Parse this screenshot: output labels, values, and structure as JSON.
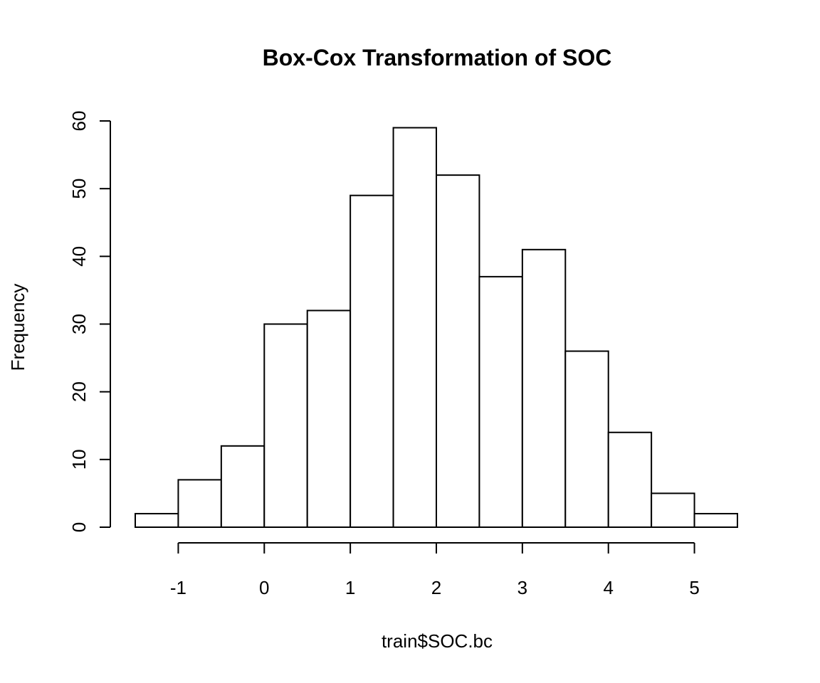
{
  "chart_data": {
    "type": "bar",
    "title": "Box-Cox Transformation of SOC",
    "xlabel": "train$SOC.bc",
    "ylabel": "Frequency",
    "bins": [
      {
        "x0": -1.5,
        "x1": -1.0,
        "count": 2
      },
      {
        "x0": -1.0,
        "x1": -0.5,
        "count": 7
      },
      {
        "x0": -0.5,
        "x1": 0.0,
        "count": 12
      },
      {
        "x0": 0.0,
        "x1": 0.5,
        "count": 30
      },
      {
        "x0": 0.5,
        "x1": 1.0,
        "count": 32
      },
      {
        "x0": 1.0,
        "x1": 1.5,
        "count": 49
      },
      {
        "x0": 1.5,
        "x1": 2.0,
        "count": 59
      },
      {
        "x0": 2.0,
        "x1": 2.5,
        "count": 52
      },
      {
        "x0": 2.5,
        "x1": 3.0,
        "count": 37
      },
      {
        "x0": 3.0,
        "x1": 3.5,
        "count": 41
      },
      {
        "x0": 3.5,
        "x1": 4.0,
        "count": 26
      },
      {
        "x0": 4.0,
        "x1": 4.5,
        "count": 14
      },
      {
        "x0": 4.5,
        "x1": 5.0,
        "count": 5
      },
      {
        "x0": 5.0,
        "x1": 5.5,
        "count": 2
      }
    ],
    "x_ticks": [
      {
        "value": -1,
        "label": "-1"
      },
      {
        "value": 0,
        "label": "0"
      },
      {
        "value": 1,
        "label": "1"
      },
      {
        "value": 2,
        "label": "2"
      },
      {
        "value": 3,
        "label": "3"
      },
      {
        "value": 4,
        "label": "4"
      },
      {
        "value": 5,
        "label": "5"
      }
    ],
    "y_ticks": [
      {
        "value": 0,
        "label": "0"
      },
      {
        "value": 10,
        "label": "10"
      },
      {
        "value": 20,
        "label": "20"
      },
      {
        "value": 30,
        "label": "30"
      },
      {
        "value": 40,
        "label": "40"
      },
      {
        "value": 50,
        "label": "50"
      },
      {
        "value": 60,
        "label": "60"
      }
    ],
    "xlim": [
      -1.5,
      5.5
    ],
    "ylim": [
      0,
      60
    ],
    "grid": false,
    "bar_fill": "#ffffff",
    "bar_stroke": "#000000"
  }
}
